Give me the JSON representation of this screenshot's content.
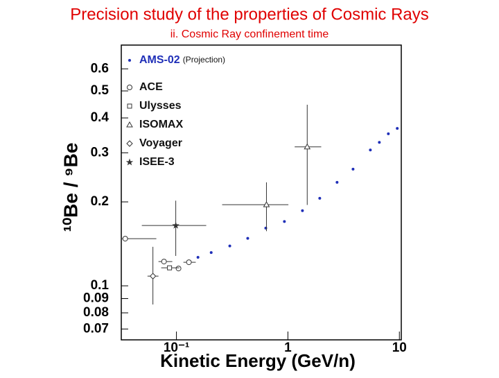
{
  "chart_data": {
    "type": "scatter",
    "title": "Precision study of the properties of Cosmic Rays",
    "subtitle": "ii. Cosmic Ray confinement time",
    "x_label": "Kinetic Energy (GeV/n)",
    "y_label": "¹⁰Be / ⁹Be",
    "annotation": "(Projection)",
    "x_log": true,
    "y_log": true,
    "xlim": [
      0.032,
      10.4
    ],
    "ylim": [
      0.064,
      0.73
    ],
    "xticks": [
      {
        "value": 0.1,
        "label": "10⁻¹"
      },
      1,
      10
    ],
    "yticks": [
      0.07,
      0.08,
      0.09,
      0.1,
      0.2,
      0.3,
      0.4,
      0.5,
      0.6
    ],
    "legend": "upper left",
    "series": [
      {
        "name": "AMS-02",
        "color": "#1f2fb8",
        "marker": "dot",
        "x": [
          0.156,
          0.205,
          0.301,
          0.436,
          0.633,
          0.93,
          1.35,
          1.93,
          2.76,
          3.84,
          5.49,
          6.61,
          7.96,
          9.57
        ],
        "values": [
          0.1265,
          0.1316,
          0.139,
          0.148,
          0.161,
          0.17,
          0.186,
          0.206,
          0.235,
          0.262,
          0.307,
          0.327,
          0.351,
          0.367
        ],
        "x_low": [
          null,
          null,
          null,
          null,
          null,
          null,
          null,
          null,
          null,
          null,
          null,
          null,
          null,
          null
        ],
        "x_high": [
          null,
          null,
          null,
          null,
          null,
          null,
          null,
          null,
          null,
          null,
          null,
          null,
          null,
          null
        ],
        "y_low": [
          null,
          null,
          null,
          null,
          null,
          null,
          null,
          null,
          null,
          null,
          null,
          null,
          null,
          null
        ],
        "y_high": [
          null,
          null,
          null,
          null,
          null,
          null,
          null,
          null,
          null,
          null,
          null,
          null,
          null,
          null
        ]
      },
      {
        "name": "ACE",
        "color": "#333333",
        "marker": "circle",
        "x": [
          0.0347,
          0.0773,
          0.1044,
          0.1294
        ],
        "values": [
          0.1476,
          0.1222,
          0.1154,
          0.1215
        ],
        "x_low": [
          0.0318,
          0.069,
          null,
          0.1155
        ],
        "x_high": [
          0.066,
          0.0918,
          null,
          0.149
        ],
        "y_low": [
          null,
          null,
          null,
          null
        ],
        "y_high": [
          null,
          null,
          null,
          null
        ]
      },
      {
        "name": "Ulysses",
        "color": "#333333",
        "marker": "square",
        "x": [
          0.0867
        ],
        "values": [
          0.116
        ],
        "x_low": [
          0.073
        ],
        "x_high": [
          0.106
        ],
        "y_low": [
          null
        ],
        "y_high": [
          null
        ]
      },
      {
        "name": "ISOMAX",
        "color": "#333333",
        "marker": "triangle",
        "x": [
          0.642,
          1.49
        ],
        "values": [
          0.1954,
          0.315
        ],
        "x_low": [
          0.257,
          1.15
        ],
        "x_high": [
          1.01,
          1.99
        ],
        "y_low": [
          0.157,
          0.195
        ],
        "y_high": [
          0.235,
          0.446
        ]
      },
      {
        "name": "Voyager",
        "color": "#333333",
        "marker": "diamond",
        "x": [
          0.0615
        ],
        "values": [
          0.1083
        ],
        "x_low": [
          0.055
        ],
        "x_high": [
          0.069
        ],
        "y_low": [
          0.0857
        ],
        "y_high": [
          0.138
        ]
      },
      {
        "name": "ISEE-3",
        "color": "#333333",
        "marker": "star",
        "x": [
          0.0986
        ],
        "values": [
          0.1645
        ],
        "x_low": [
          0.0489
        ],
        "x_high": [
          0.185
        ],
        "y_low": [
          0.128
        ],
        "y_high": [
          0.202
        ]
      }
    ]
  }
}
